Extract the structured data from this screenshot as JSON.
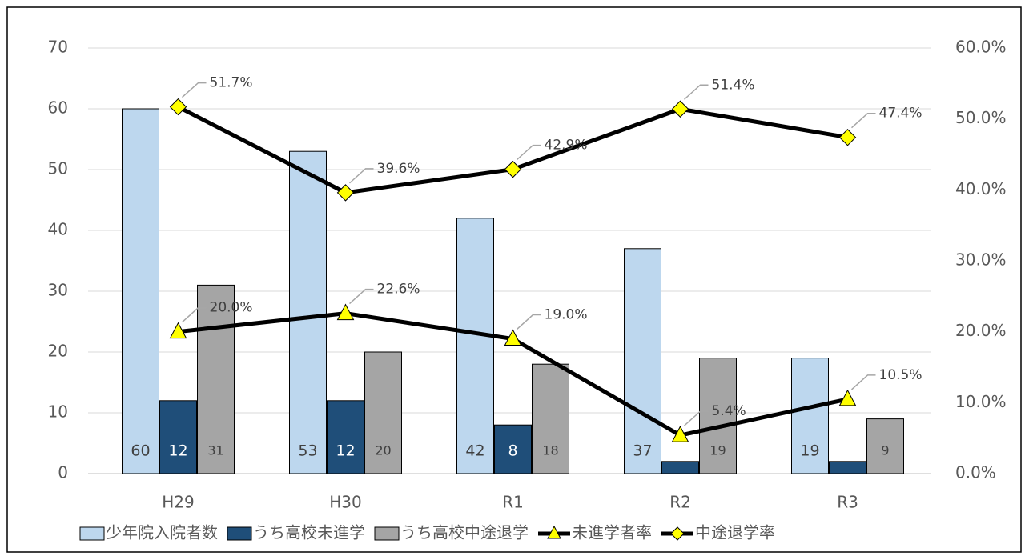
{
  "chart_data": {
    "type": "bar-line",
    "categories": [
      "H29",
      "H30",
      "R1",
      "R2",
      "R3"
    ],
    "series": [
      {
        "name": "少年院入院者数",
        "type": "bar",
        "color": "#bdd7ee",
        "label_color": "#404040",
        "values": [
          60,
          53,
          42,
          37,
          19
        ]
      },
      {
        "name": "うち高校未進学",
        "type": "bar",
        "color": "#1f4e79",
        "label_color": "#ffffff",
        "values": [
          12,
          12,
          8,
          2,
          2
        ],
        "value_labels": [
          "12",
          "12",
          "8",
          null,
          null
        ]
      },
      {
        "name": "うち高校中途退学",
        "type": "bar",
        "color": "#a5a5a5",
        "label_color": "#404040",
        "values": [
          31,
          20,
          18,
          19,
          9
        ]
      },
      {
        "name": "未進学者率",
        "type": "line",
        "axis": "y2",
        "color": "#000000",
        "marker": "triangle",
        "marker_color": "#ffff00",
        "values": [
          20.0,
          22.6,
          19.0,
          5.4,
          10.5
        ],
        "value_labels": [
          "20.0%",
          "22.6%",
          "19.0%",
          "5.4%",
          "10.5%"
        ]
      },
      {
        "name": "中途退学率",
        "type": "line",
        "axis": "y2",
        "color": "#000000",
        "marker": "diamond",
        "marker_color": "#ffff00",
        "values": [
          51.7,
          39.6,
          42.9,
          51.4,
          47.4
        ],
        "value_labels": [
          "51.7%",
          "39.6%",
          "42.9%",
          "51.4%",
          "47.4%"
        ]
      }
    ],
    "ylim": [
      0,
      70
    ],
    "yticks": [
      0,
      10,
      20,
      30,
      40,
      50,
      60,
      70
    ],
    "y2lim": [
      0,
      60
    ],
    "y2ticks": [
      {
        "value": 0,
        "label": "0.0%"
      },
      {
        "value": 10,
        "label": "10.0%"
      },
      {
        "value": 20,
        "label": "20.0%"
      },
      {
        "value": 30,
        "label": "30.0%"
      },
      {
        "value": 40,
        "label": "40.0%"
      },
      {
        "value": 50,
        "label": "50.0%"
      },
      {
        "value": 60,
        "label": "60.0%"
      }
    ],
    "grid": true,
    "legend": "bottom"
  }
}
